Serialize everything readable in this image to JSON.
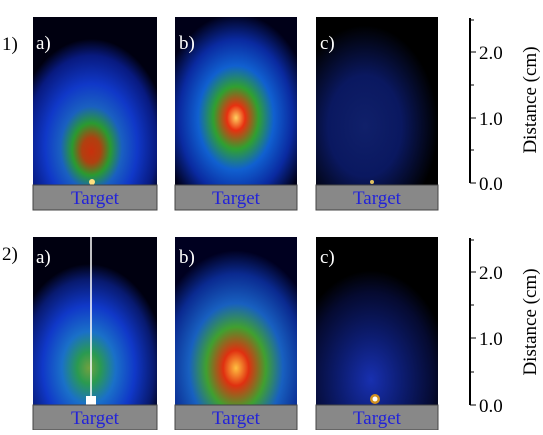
{
  "rows": [
    {
      "label": "1)",
      "panels": [
        {
          "label": "a)",
          "target": "Target"
        },
        {
          "label": "b)",
          "target": "Target"
        },
        {
          "label": "c)",
          "target": "Target"
        }
      ],
      "axis": {
        "title": "Distance (cm)",
        "ticks": [
          "0.0",
          "1.0",
          "2.0"
        ]
      }
    },
    {
      "label": "2)",
      "panels": [
        {
          "label": "a)",
          "target": "Target"
        },
        {
          "label": "b)",
          "target": "Target"
        },
        {
          "label": "c)",
          "target": "Target"
        }
      ],
      "axis": {
        "title": "Distance (cm)",
        "ticks": [
          "0.0",
          "1.0",
          "2.0"
        ]
      }
    }
  ]
}
